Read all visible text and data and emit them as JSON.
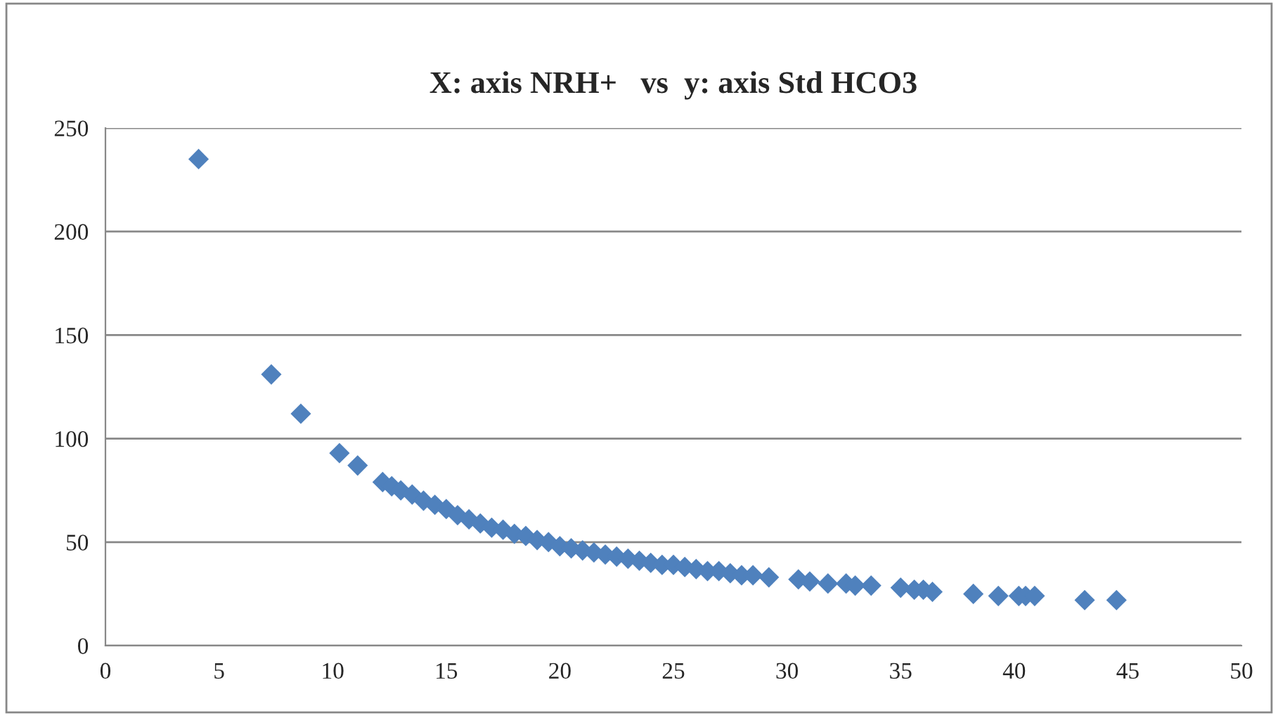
{
  "chart_data": {
    "type": "scatter",
    "title": "X: axis NRH+   vs  y: axis Std HCO3",
    "x": [
      4.1,
      7.3,
      8.6,
      10.3,
      11.1,
      12.2,
      12.6,
      13,
      13.5,
      14,
      14.5,
      15,
      15.5,
      16,
      16.5,
      17,
      17.5,
      18,
      18.5,
      19,
      19.5,
      20,
      20.5,
      21,
      21.5,
      22,
      22.5,
      23,
      23.5,
      24,
      24.5,
      25,
      25.5,
      26,
      26.5,
      27,
      27.5,
      28,
      28.5,
      29.2,
      30.5,
      31,
      31.8,
      32.6,
      33,
      33.7,
      35,
      35.6,
      36,
      36.4,
      38.2,
      39.3,
      40.2,
      40.5,
      40.9,
      43.1,
      44.5
    ],
    "series": [
      {
        "color": "#4f81bd",
        "values": [
          235,
          131,
          112,
          93,
          87,
          79,
          77,
          75,
          73,
          70,
          68,
          66,
          63,
          61,
          59,
          57,
          56,
          54,
          53,
          51,
          50,
          48,
          47,
          46,
          45,
          44,
          43,
          42,
          41,
          40,
          39,
          39,
          38,
          37,
          36,
          36,
          35,
          34,
          34,
          33,
          32,
          31,
          30,
          30,
          29,
          29,
          28,
          27,
          27,
          26,
          25,
          24,
          24,
          24,
          24,
          22,
          22
        ]
      }
    ],
    "xlim": [
      0,
      50
    ],
    "xticks": [
      0,
      5,
      10,
      15,
      20,
      25,
      30,
      35,
      40,
      45,
      50
    ],
    "ylim": [
      0,
      250
    ],
    "yticks": [
      0,
      50,
      100,
      150,
      200,
      250
    ],
    "grid": "y",
    "marker": "diamond",
    "legend": false
  }
}
